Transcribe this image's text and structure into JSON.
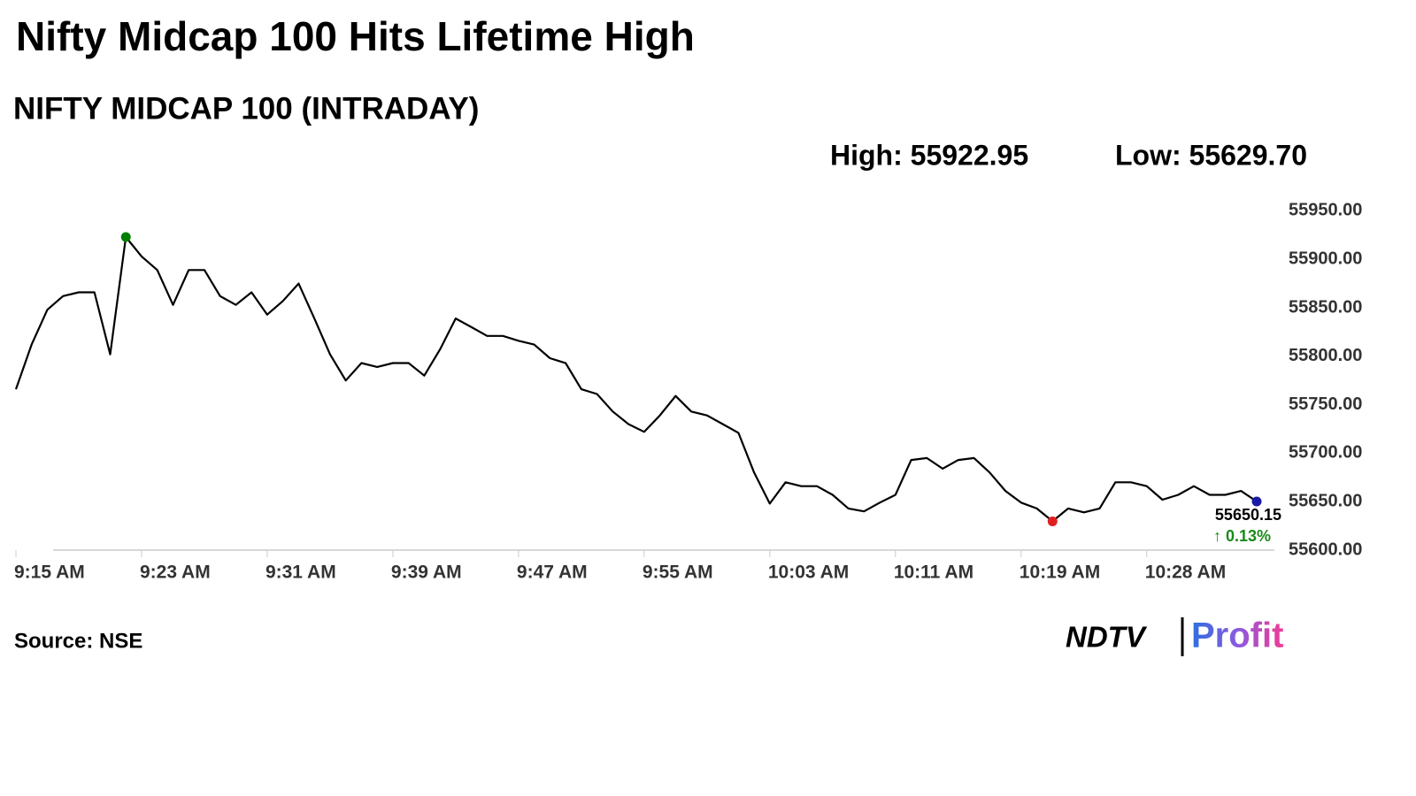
{
  "chart_data": {
    "type": "line",
    "title": "Nifty Midcap 100 Hits Lifetime High",
    "subtitle": "NIFTY MIDCAP 100 (INTRADAY)",
    "stats": [
      "High: 55922.95",
      "Low: 55629.70"
    ],
    "source": "Source: NSE",
    "logo": [
      "NDTV",
      "Profit"
    ],
    "categories": [
      "9:15 AM",
      null,
      null,
      null,
      null,
      null,
      null,
      null,
      "9:23 AM",
      null,
      null,
      null,
      null,
      null,
      null,
      null,
      "9:31 AM",
      null,
      null,
      null,
      null,
      null,
      null,
      null,
      "9:39 AM",
      null,
      null,
      null,
      null,
      null,
      null,
      null,
      "9:47 AM",
      null,
      null,
      null,
      null,
      null,
      null,
      null,
      "9:55 AM",
      null,
      null,
      null,
      null,
      null,
      null,
      null,
      "10:03 AM",
      null,
      null,
      null,
      null,
      null,
      null,
      null,
      "10:11 AM",
      null,
      null,
      null,
      null,
      null,
      null,
      null,
      "10:19 AM",
      null,
      null,
      null,
      null,
      null,
      null,
      null,
      "10:28 AM",
      null,
      null,
      null,
      null,
      null,
      null,
      null
    ],
    "series": [
      {
        "color": "#000000",
        "values": [
          55766,
          55812,
          55848,
          55862,
          55866,
          55866,
          55802,
          55922.95,
          55903,
          55889,
          55853,
          55889,
          55889,
          55862,
          55853,
          55866,
          55843,
          55857,
          55875,
          55839,
          55802,
          55775,
          55793,
          55789,
          55793,
          55793,
          55780,
          55807,
          55839,
          55830,
          55821,
          55821,
          55816,
          55812,
          55798,
          55793,
          55766,
          55761,
          55743,
          55730,
          55722,
          55739,
          55759,
          55743,
          55739,
          55730,
          55721,
          55680,
          55648,
          55670,
          55666,
          55666,
          55657,
          55643,
          55640,
          55649,
          55657,
          55693,
          55695,
          55684,
          55693,
          55695,
          55680,
          55661,
          55649,
          55643,
          55629.7,
          55643,
          55639,
          55643,
          55670,
          55670,
          55666,
          55652,
          55657,
          55666,
          55657,
          55657,
          55661,
          55650.15
        ]
      }
    ],
    "annotations": [
      "55650.15",
      "↑ 0.13%"
    ],
    "annotation_color": "#1a8a1a",
    "marker_colors": {
      "high": "#008000",
      "low": "#e02020",
      "last": "#1a1aa8"
    },
    "ylim": [
      55600,
      55975
    ],
    "yticks": [
      {
        "value": 55600,
        "label": "55600.00"
      },
      {
        "value": 55650,
        "label": "55650.00"
      },
      {
        "value": 55700,
        "label": "55700.00"
      },
      {
        "value": 55750,
        "label": "55750.00"
      },
      {
        "value": 55800,
        "label": "55800.00"
      },
      {
        "value": 55850,
        "label": "55850.00"
      },
      {
        "value": 55900,
        "label": "55900.00"
      },
      {
        "value": 55950,
        "label": "55950.00"
      }
    ],
    "grid": false
  }
}
